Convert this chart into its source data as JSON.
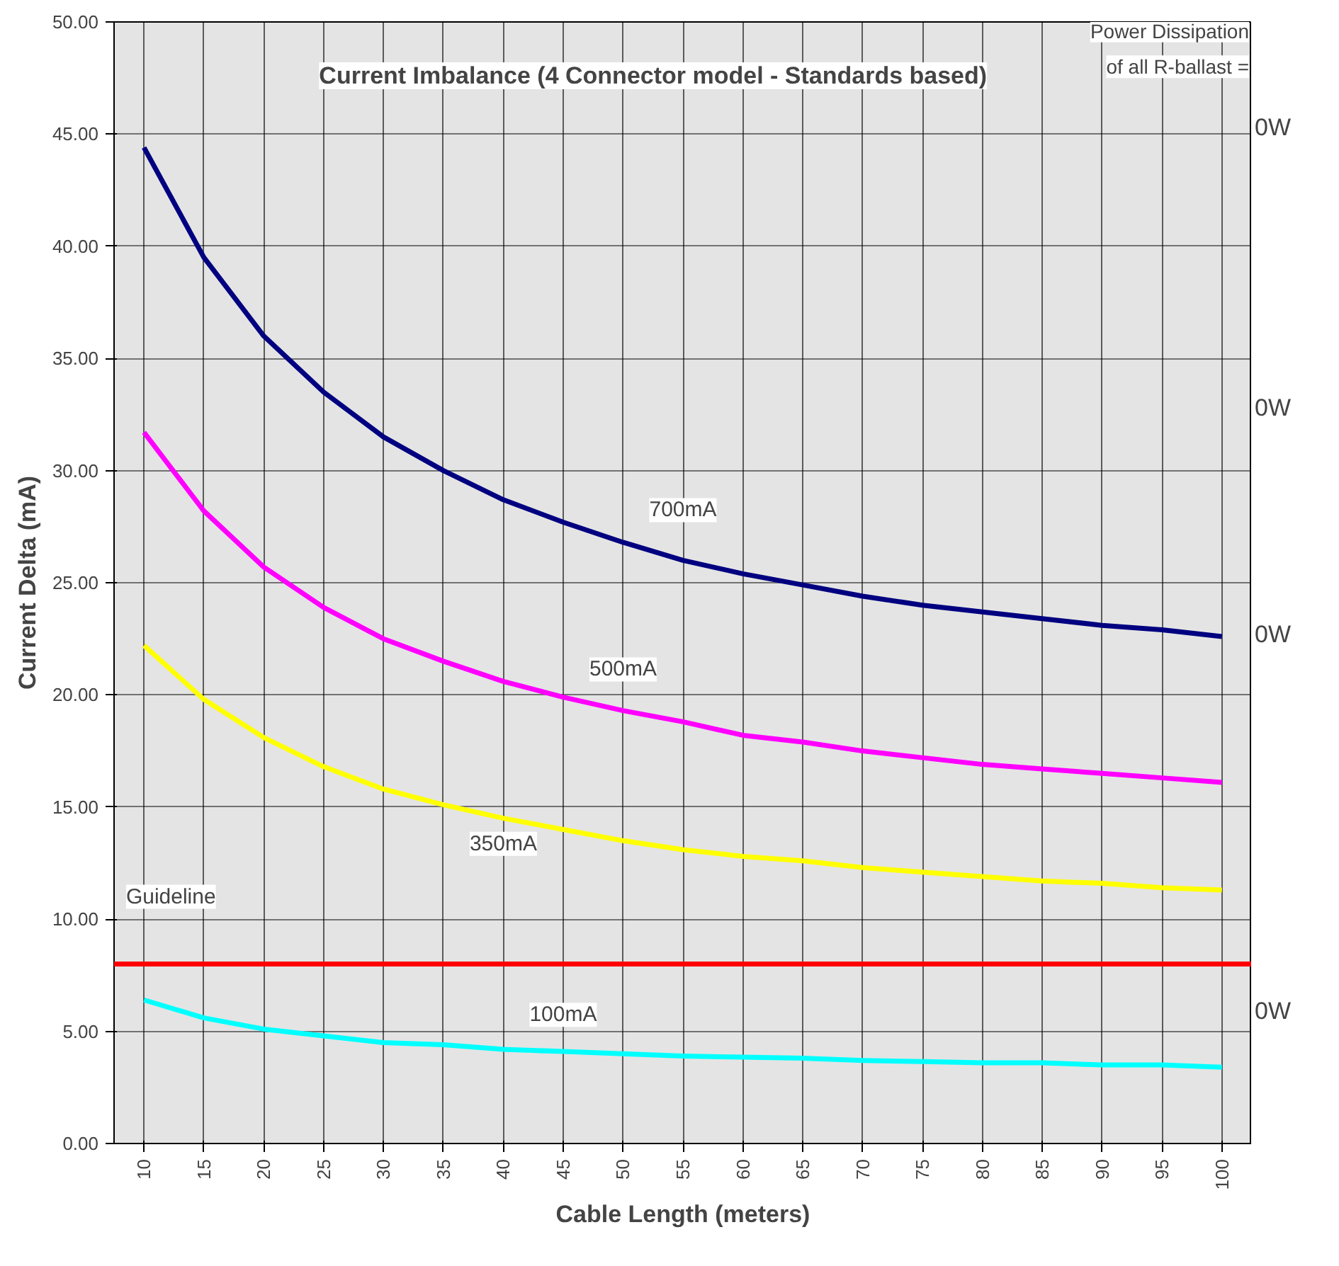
{
  "chart_data": {
    "type": "line",
    "title": "Current Imbalance (4 Connector model - Standards based)",
    "xlabel": "Cable Length (meters)",
    "ylabel": "Current Delta (mA)",
    "categories": [
      "10",
      "15",
      "20",
      "25",
      "30",
      "35",
      "40",
      "45",
      "50",
      "55",
      "60",
      "65",
      "70",
      "75",
      "80",
      "85",
      "90",
      "95",
      "100"
    ],
    "series": [
      {
        "name": "700mA",
        "color": "#000080",
        "values": [
          44.4,
          39.5,
          36.0,
          33.5,
          31.5,
          30.0,
          28.7,
          27.7,
          26.8,
          26.0,
          25.4,
          24.9,
          24.4,
          24.0,
          23.7,
          23.4,
          23.1,
          22.9,
          22.6
        ]
      },
      {
        "name": "500mA",
        "color": "#ff00ff",
        "values": [
          31.7,
          28.2,
          25.7,
          23.9,
          22.5,
          21.5,
          20.6,
          19.9,
          19.3,
          18.8,
          18.2,
          17.9,
          17.5,
          17.2,
          16.9,
          16.7,
          16.5,
          16.3,
          16.1
        ]
      },
      {
        "name": "350mA",
        "color": "#ffff00",
        "values": [
          22.2,
          19.8,
          18.1,
          16.8,
          15.8,
          15.1,
          14.5,
          14.0,
          13.5,
          13.1,
          12.8,
          12.6,
          12.3,
          12.1,
          11.9,
          11.7,
          11.6,
          11.4,
          11.3
        ]
      },
      {
        "name": "100mA",
        "color": "#00ffff",
        "values": [
          6.4,
          5.6,
          5.1,
          4.8,
          4.5,
          4.4,
          4.2,
          4.1,
          4.0,
          3.9,
          3.85,
          3.8,
          3.7,
          3.65,
          3.6,
          3.6,
          3.5,
          3.5,
          3.4
        ]
      }
    ],
    "ref_lines": [
      {
        "axis": "y",
        "value": 8,
        "label": "Guideline",
        "color": "#ff0000"
      }
    ],
    "annotations": [
      "Power Dissipation",
      "of all R-ballast =",
      "0W",
      "0W",
      "0W",
      "0W"
    ],
    "ylim": [
      0,
      50
    ],
    "yticks": [
      {
        "value": 0,
        "label": "0.00"
      },
      {
        "value": 5,
        "label": "5.00"
      },
      {
        "value": 10,
        "label": "10.00"
      },
      {
        "value": 15,
        "label": "15.00"
      },
      {
        "value": 20,
        "label": "20.00"
      },
      {
        "value": 25,
        "label": "25.00"
      },
      {
        "value": 30,
        "label": "30.00"
      },
      {
        "value": 35,
        "label": "35.00"
      },
      {
        "value": 40,
        "label": "40.00"
      },
      {
        "value": 45,
        "label": "45.00"
      },
      {
        "value": 50,
        "label": "50.00"
      }
    ],
    "grid": true
  }
}
